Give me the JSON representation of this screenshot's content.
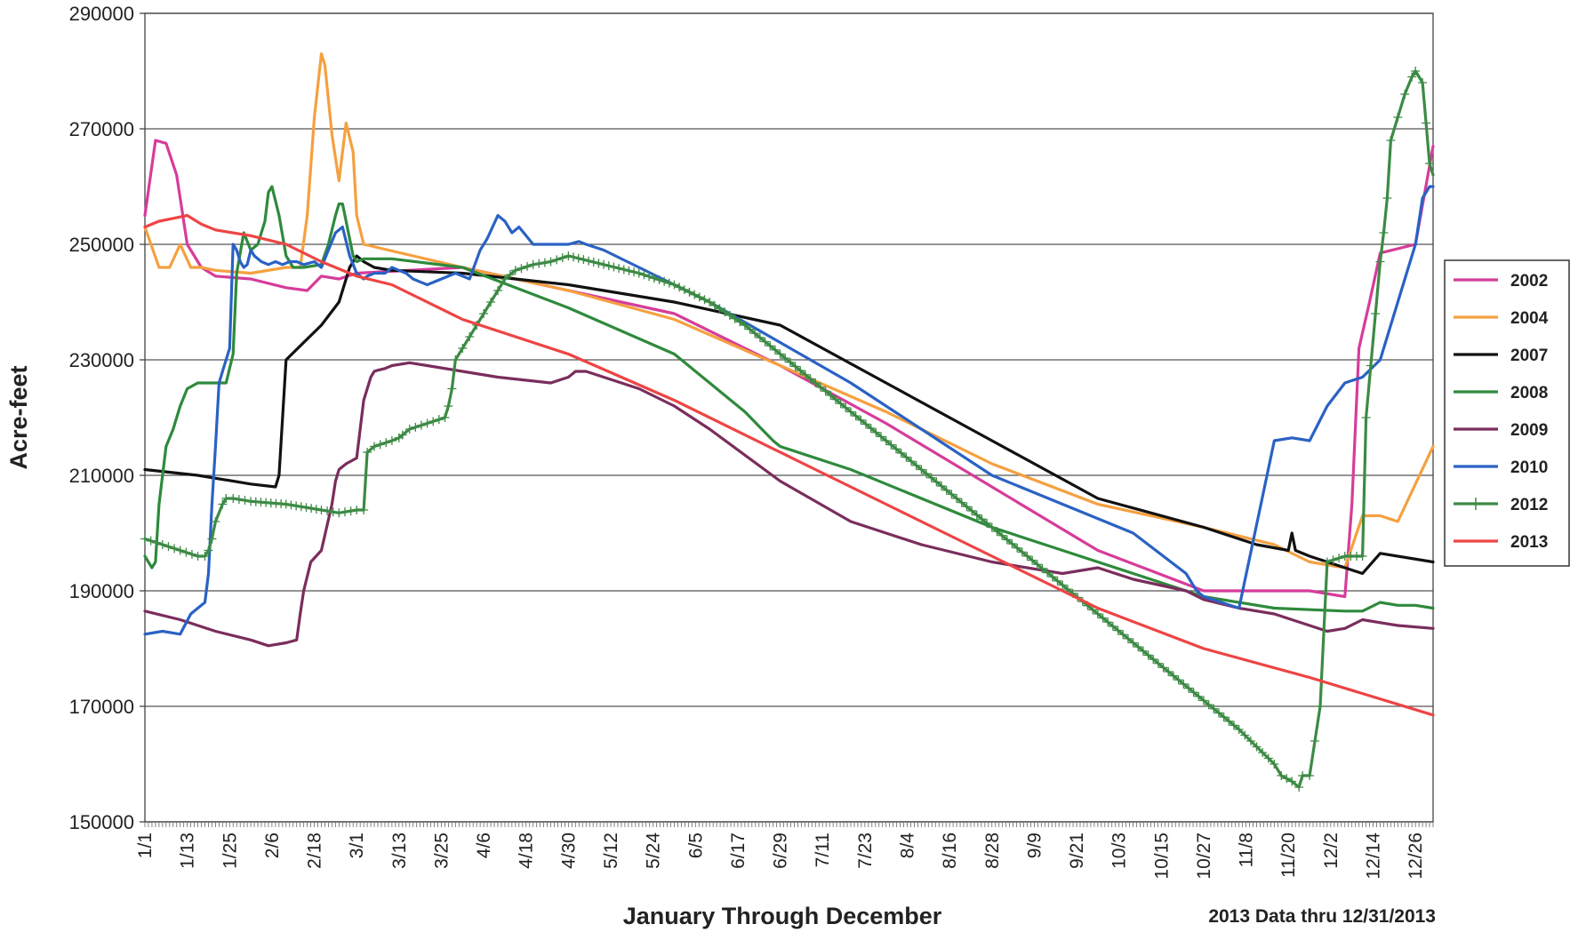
{
  "chart_data": {
    "type": "line",
    "title": "",
    "xlabel": "January Through December",
    "ylabel": "Acre-feet",
    "note": "2013 Data thru 12/31/2013",
    "ylim": [
      150000,
      290000
    ],
    "yticks": [
      150000,
      170000,
      190000,
      210000,
      230000,
      250000,
      270000,
      290000
    ],
    "xlim": [
      0,
      365
    ],
    "xtick_labels": [
      "1/1",
      "1/13",
      "1/25",
      "2/6",
      "2/18",
      "3/1",
      "3/13",
      "3/25",
      "4/6",
      "4/18",
      "4/30",
      "5/12",
      "5/24",
      "6/5",
      "6/17",
      "6/29",
      "7/11",
      "7/23",
      "8/4",
      "8/16",
      "8/28",
      "9/9",
      "9/21",
      "10/3",
      "10/15",
      "10/27",
      "11/8",
      "11/20",
      "12/2",
      "12/14",
      "12/26"
    ],
    "grid": true,
    "legend": "right",
    "series": [
      {
        "name": "2002",
        "color": "#d63c9a",
        "marker": "none",
        "x": [
          0,
          3,
          6,
          9,
          12,
          16,
          20,
          30,
          40,
          46,
          50,
          55,
          60,
          90,
          120,
          150,
          180,
          210,
          240,
          270,
          300,
          330,
          340,
          342,
          344,
          347,
          350,
          360,
          365
        ],
        "y": [
          255000,
          268000,
          267500,
          262000,
          250000,
          246000,
          244500,
          244000,
          242500,
          242000,
          244500,
          244000,
          245000,
          246000,
          242000,
          238000,
          229000,
          219000,
          208000,
          197000,
          190000,
          190000,
          189000,
          205000,
          232000,
          240000,
          248500,
          250000,
          267000
        ]
      },
      {
        "name": "2004",
        "color": "#f5a040",
        "marker": "none",
        "x": [
          0,
          4,
          7,
          10,
          13,
          16,
          20,
          30,
          40,
          44,
          46,
          48,
          50,
          51,
          53,
          55,
          57,
          59,
          60,
          62,
          90,
          120,
          150,
          180,
          210,
          240,
          270,
          300,
          320,
          330,
          340,
          345,
          350,
          355,
          365
        ],
        "y": [
          253000,
          246000,
          246000,
          250000,
          246000,
          246000,
          245500,
          245000,
          246000,
          246000,
          255000,
          272000,
          283000,
          281000,
          269000,
          261000,
          271000,
          266000,
          255000,
          250000,
          246000,
          242000,
          237000,
          229000,
          221000,
          212000,
          205000,
          201000,
          198000,
          195000,
          194000,
          203000,
          203000,
          202000,
          215000
        ]
      },
      {
        "name": "2007",
        "color": "#111111",
        "marker": "none",
        "x": [
          0,
          15,
          30,
          37,
          38,
          40,
          45,
          50,
          55,
          58,
          60,
          62,
          65,
          70,
          90,
          120,
          150,
          180,
          210,
          240,
          270,
          300,
          315,
          324,
          325,
          326,
          330,
          340,
          345,
          350,
          365
        ],
        "y": [
          211000,
          210000,
          208500,
          208000,
          210000,
          230000,
          233000,
          236000,
          240000,
          246000,
          248000,
          247000,
          246000,
          245500,
          245000,
          243000,
          240000,
          236000,
          226000,
          216000,
          206000,
          201000,
          198000,
          197000,
          200000,
          197000,
          196000,
          194000,
          193000,
          196500,
          195000
        ]
      },
      {
        "name": "2008",
        "color": "#2e8a3c",
        "marker": "none",
        "x": [
          0,
          2,
          3,
          4,
          6,
          8,
          10,
          12,
          15,
          20,
          23,
          25,
          26,
          28,
          30,
          32,
          34,
          35,
          36,
          38,
          40,
          42,
          45,
          50,
          52,
          54,
          55,
          56,
          57,
          59,
          60,
          62,
          70,
          90,
          120,
          150,
          170,
          178,
          180,
          200,
          220,
          240,
          260,
          280,
          300,
          320,
          340,
          345,
          350,
          355,
          360,
          365
        ],
        "y": [
          196000,
          194000,
          195000,
          205000,
          215000,
          218000,
          222000,
          225000,
          226000,
          226000,
          226000,
          231000,
          245000,
          252000,
          249000,
          250000,
          254000,
          259000,
          260000,
          255000,
          248000,
          246000,
          246000,
          246500,
          250000,
          255000,
          257000,
          257000,
          254000,
          248000,
          247000,
          247500,
          247500,
          246000,
          239000,
          231000,
          221000,
          216000,
          215000,
          211000,
          206000,
          201000,
          197000,
          193000,
          189000,
          187000,
          186500,
          186500,
          188000,
          187500,
          187500,
          187000
        ]
      },
      {
        "name": "2009",
        "color": "#7a2d5c",
        "marker": "none",
        "x": [
          0,
          10,
          20,
          30,
          35,
          40,
          43,
          44,
          45,
          47,
          50,
          53,
          54,
          55,
          57,
          60,
          62,
          64,
          65,
          66,
          68,
          70,
          75,
          80,
          90,
          100,
          115,
          120,
          122,
          125,
          130,
          140,
          150,
          160,
          180,
          200,
          220,
          240,
          260,
          270,
          280,
          295,
          300,
          310,
          320,
          325,
          330,
          335,
          340,
          345,
          350,
          355,
          365
        ],
        "y": [
          186500,
          185000,
          183000,
          181500,
          180500,
          181000,
          181500,
          186000,
          190000,
          195000,
          197000,
          205000,
          209000,
          211000,
          212000,
          213000,
          223000,
          227000,
          228000,
          228200,
          228500,
          229000,
          229500,
          229000,
          228000,
          227000,
          226000,
          227000,
          228000,
          228000,
          227000,
          225000,
          222000,
          218000,
          209000,
          202000,
          198000,
          195000,
          193000,
          194000,
          192000,
          190000,
          188500,
          187000,
          186000,
          185000,
          184000,
          183000,
          183500,
          185000,
          184500,
          184000,
          183500
        ]
      },
      {
        "name": "2010",
        "color": "#2a62c4",
        "marker": "none",
        "x": [
          0,
          5,
          10,
          13,
          15,
          17,
          18,
          19,
          20,
          21,
          22,
          23,
          24,
          25,
          26,
          27,
          28,
          29,
          30,
          31,
          33,
          35,
          37,
          39,
          41,
          43,
          45,
          48,
          50,
          52,
          54,
          56,
          58,
          60,
          61,
          62,
          63,
          65,
          68,
          70,
          72,
          74,
          76,
          78,
          80,
          84,
          88,
          90,
          92,
          95,
          97,
          100,
          102,
          104,
          106,
          110,
          120,
          123,
          125,
          130,
          140,
          150,
          160,
          180,
          200,
          220,
          240,
          260,
          280,
          295,
          297,
          298,
          300,
          310,
          320,
          325,
          330,
          335,
          340,
          345,
          350,
          355,
          358,
          360,
          362,
          364,
          365
        ],
        "y": [
          182500,
          183000,
          182500,
          186000,
          187000,
          188000,
          193000,
          205000,
          215000,
          226000,
          228000,
          230000,
          232000,
          250000,
          249000,
          247000,
          246000,
          246500,
          249000,
          248000,
          247000,
          246500,
          247000,
          246500,
          247000,
          247000,
          246500,
          247000,
          246000,
          249000,
          252000,
          253000,
          248000,
          245000,
          244500,
          244000,
          244500,
          245000,
          245000,
          246000,
          245500,
          245000,
          244000,
          243500,
          243000,
          244000,
          245000,
          244500,
          244000,
          249000,
          251000,
          255000,
          254000,
          252000,
          253000,
          250000,
          250000,
          250500,
          250000,
          249000,
          246000,
          243000,
          240000,
          233000,
          226000,
          218000,
          210000,
          205000,
          200000,
          193000,
          191000,
          190000,
          189000,
          187000,
          216000,
          216500,
          216000,
          222000,
          226000,
          227000,
          230000,
          240000,
          246000,
          250000,
          258000,
          260000,
          260000
        ]
      },
      {
        "name": "2012",
        "color": "#3d8a45",
        "marker": "plus",
        "x": [
          0,
          5,
          10,
          15,
          17,
          18,
          19,
          20,
          22,
          23,
          25,
          30,
          40,
          50,
          55,
          60,
          62,
          63,
          65,
          70,
          72,
          73,
          75,
          80,
          85,
          86,
          87,
          88,
          90,
          92,
          94,
          96,
          98,
          100,
          102,
          105,
          110,
          115,
          120,
          130,
          140,
          150,
          160,
          170,
          180,
          190,
          200,
          210,
          220,
          230,
          240,
          250,
          260,
          270,
          280,
          290,
          300,
          310,
          315,
          320,
          322,
          325,
          327,
          328,
          330,
          333,
          335,
          340,
          345,
          346,
          350,
          351,
          352,
          353,
          355,
          357,
          359,
          360,
          362,
          363,
          364,
          365
        ],
        "y": [
          199000,
          198000,
          197000,
          196000,
          196000,
          197000,
          199000,
          202000,
          205000,
          206000,
          206000,
          205500,
          205000,
          204000,
          203500,
          204000,
          204000,
          214000,
          215000,
          216000,
          216500,
          217000,
          218000,
          219000,
          220000,
          222000,
          225000,
          230000,
          232000,
          234000,
          236000,
          238000,
          240000,
          242000,
          244000,
          245500,
          246500,
          247000,
          248000,
          246500,
          245000,
          243000,
          240000,
          236000,
          231000,
          226000,
          221000,
          216000,
          211000,
          206000,
          201000,
          196000,
          191000,
          186000,
          181000,
          176000,
          171000,
          166000,
          163000,
          160000,
          158000,
          157000,
          156000,
          158000,
          158000,
          170000,
          195000,
          196000,
          196000,
          220000,
          247000,
          252000,
          258000,
          268000,
          272000,
          276000,
          279000,
          280000,
          278000,
          271000,
          264000,
          262000
        ]
      },
      {
        "name": "2013",
        "color": "#ee4444",
        "marker": "none",
        "x": [
          0,
          4,
          8,
          12,
          16,
          20,
          30,
          40,
          50,
          60,
          70,
          90,
          120,
          150,
          180,
          210,
          240,
          270,
          300,
          330,
          365
        ],
        "y": [
          253000,
          254000,
          254500,
          255000,
          253500,
          252500,
          251500,
          250000,
          247000,
          244500,
          243000,
          237000,
          231000,
          223000,
          214000,
          205000,
          196000,
          187000,
          180000,
          175000,
          168500
        ]
      }
    ]
  }
}
